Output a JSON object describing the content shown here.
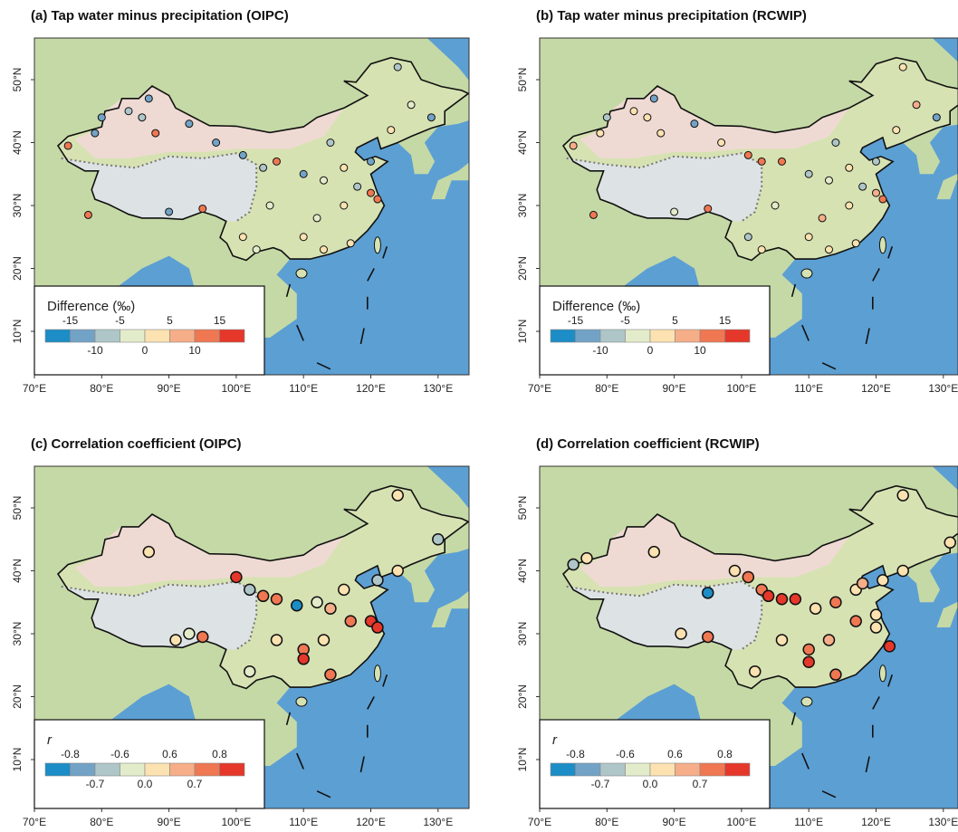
{
  "panels": [
    {
      "title": "(a) Tap water minus precipitation (OIPC)",
      "legend_title": "Difference (‰)",
      "legend_breaks": [
        -15,
        -10,
        -5,
        0,
        5,
        10,
        15
      ],
      "legend_colors": [
        "#1c8dc6",
        "#72a3c6",
        "#aec6c8",
        "#e3ecca",
        "#fbe2b0",
        "#f6ae88",
        "#ef7752",
        "#e5372a"
      ],
      "lon_ticks": [
        {
          "value": 70,
          "label": "70°E"
        },
        {
          "value": 80,
          "label": "80°E"
        },
        {
          "value": 90,
          "label": "90°E"
        },
        {
          "value": 100,
          "label": "100°E"
        },
        {
          "value": 110,
          "label": "110°E"
        },
        {
          "value": 120,
          "label": "120°E"
        },
        {
          "value": 130,
          "label": "130°E"
        }
      ],
      "lat_ticks": [
        {
          "value": 10,
          "label": "10°N"
        },
        {
          "value": 20,
          "label": "20°N"
        },
        {
          "value": 30,
          "label": "30°N"
        },
        {
          "value": 40,
          "label": "40°N"
        },
        {
          "value": 50,
          "label": "50°N"
        }
      ],
      "stations": [
        [
          75,
          39.5,
          12
        ],
        [
          79,
          41.5,
          -12
        ],
        [
          80,
          44,
          -11
        ],
        [
          84,
          45,
          -8
        ],
        [
          87,
          47,
          -13
        ],
        [
          86,
          44,
          -10
        ],
        [
          93,
          43,
          -12
        ],
        [
          88,
          41.5,
          10
        ],
        [
          97,
          40,
          -11
        ],
        [
          101,
          38,
          -14
        ],
        [
          104,
          36,
          -9
        ],
        [
          106,
          37,
          12
        ],
        [
          110,
          35,
          -12
        ],
        [
          113,
          34,
          -3
        ],
        [
          116,
          36,
          2
        ],
        [
          118,
          33,
          -8
        ],
        [
          120,
          32,
          13
        ],
        [
          121,
          31,
          12
        ],
        [
          116,
          30,
          3
        ],
        [
          112,
          28,
          -1
        ],
        [
          110,
          25,
          4
        ],
        [
          105,
          30,
          -2
        ],
        [
          101,
          25,
          0
        ],
        [
          103,
          23,
          -1
        ],
        [
          95,
          29.5,
          13
        ],
        [
          90,
          29,
          -11
        ],
        [
          78,
          28.5,
          14
        ],
        [
          114,
          40,
          -9
        ],
        [
          123,
          42,
          1
        ],
        [
          126,
          46,
          -3
        ],
        [
          129,
          44,
          -12
        ],
        [
          124,
          52,
          -9
        ],
        [
          120,
          37,
          -12
        ],
        [
          113,
          23,
          2
        ],
        [
          117,
          24,
          1
        ]
      ]
    },
    {
      "title": "(b) Tap water minus precipitation (RCWIP)",
      "legend_title": "Difference (‰)",
      "legend_breaks": [
        -15,
        -10,
        -5,
        0,
        5,
        10,
        15
      ],
      "legend_colors": [
        "#1c8dc6",
        "#72a3c6",
        "#aec6c8",
        "#e3ecca",
        "#fbe2b0",
        "#f6ae88",
        "#ef7752",
        "#e5372a"
      ],
      "lon_ticks": [
        {
          "value": 70,
          "label": "70°E"
        },
        {
          "value": 80,
          "label": "80°E"
        },
        {
          "value": 90,
          "label": "90°E"
        },
        {
          "value": 100,
          "label": "100°E"
        },
        {
          "value": 110,
          "label": "110°E"
        },
        {
          "value": 120,
          "label": "120°E"
        },
        {
          "value": 130,
          "label": "130°E"
        }
      ],
      "lat_ticks": [
        {
          "value": 10,
          "label": "10°N"
        },
        {
          "value": 20,
          "label": "20°N"
        },
        {
          "value": 30,
          "label": "30°N"
        },
        {
          "value": 40,
          "label": "40°N"
        },
        {
          "value": 50,
          "label": "50°N"
        }
      ],
      "stations": [
        [
          75,
          39.5,
          6
        ],
        [
          79,
          41.5,
          2
        ],
        [
          80,
          44,
          -9
        ],
        [
          84,
          45,
          1
        ],
        [
          87,
          47,
          -11
        ],
        [
          86,
          44,
          2
        ],
        [
          93,
          43,
          -12
        ],
        [
          88,
          41.5,
          3
        ],
        [
          97,
          40,
          1
        ],
        [
          101,
          38,
          13
        ],
        [
          103,
          37,
          14
        ],
        [
          106,
          37,
          13
        ],
        [
          110,
          35,
          -10
        ],
        [
          113,
          34,
          -2
        ],
        [
          116,
          36,
          3
        ],
        [
          118,
          33,
          -6
        ],
        [
          120,
          32,
          9
        ],
        [
          121,
          31,
          14
        ],
        [
          116,
          30,
          4
        ],
        [
          112,
          28,
          8
        ],
        [
          110,
          25,
          3
        ],
        [
          105,
          30,
          -3
        ],
        [
          101,
          25,
          -7
        ],
        [
          103,
          23,
          1
        ],
        [
          95,
          29.5,
          13
        ],
        [
          90,
          29,
          -4
        ],
        [
          78,
          28.5,
          14
        ],
        [
          114,
          40,
          -9
        ],
        [
          123,
          42,
          4
        ],
        [
          126,
          46,
          8
        ],
        [
          129,
          44,
          -12
        ],
        [
          124,
          52,
          2
        ],
        [
          120,
          37,
          -8
        ],
        [
          113,
          23,
          3
        ],
        [
          117,
          24,
          2
        ]
      ]
    },
    {
      "title": "(c) Correlation coefficient (OIPC)",
      "legend_title": "r",
      "legend_breaks": [
        -0.8,
        -0.7,
        -0.6,
        {
          "value": 0,
          "label": "0.0"
        },
        0.6,
        0.7,
        0.8
      ],
      "legend_colors": [
        "#1c8dc6",
        "#72a3c6",
        "#aec6c8",
        "#e3ecca",
        "#fbe2b0",
        "#f6ae88",
        "#ef7752",
        "#e5372a"
      ],
      "lon_ticks": [
        {
          "value": 70,
          "label": "70°E"
        },
        {
          "value": 80,
          "label": "80°E"
        },
        {
          "value": 90,
          "label": "90°E"
        },
        {
          "value": 100,
          "label": "100°E"
        },
        {
          "value": 110,
          "label": "110°E"
        },
        {
          "value": 120,
          "label": "120°E"
        },
        {
          "value": 130,
          "label": "130°E"
        }
      ],
      "lat_ticks": [
        {
          "value": 10,
          "label": "10°N"
        },
        {
          "value": 20,
          "label": "20°N"
        },
        {
          "value": 30,
          "label": "30°N"
        },
        {
          "value": 40,
          "label": "40°N"
        },
        {
          "value": 50,
          "label": "50°N"
        }
      ],
      "stations": [
        [
          87,
          43,
          0.3
        ],
        [
          100,
          39,
          0.85
        ],
        [
          102,
          37,
          -0.65
        ],
        [
          104,
          36,
          0.75
        ],
        [
          106,
          35.5,
          0.75
        ],
        [
          109,
          34.5,
          -0.9
        ],
        [
          112,
          35,
          -0.6
        ],
        [
          114,
          34,
          0.65
        ],
        [
          116,
          37,
          0.5
        ],
        [
          121,
          38.5,
          -0.65
        ],
        [
          117,
          32,
          0.75
        ],
        [
          120,
          32,
          0.85
        ],
        [
          121,
          31,
          0.85
        ],
        [
          113,
          29,
          0.3
        ],
        [
          110,
          27.5,
          0.75
        ],
        [
          110,
          26,
          0.85
        ],
        [
          114,
          23.5,
          0.7
        ],
        [
          106,
          29,
          0.5
        ],
        [
          102,
          24,
          -0.6
        ],
        [
          91,
          29,
          0.3
        ],
        [
          95,
          29.5,
          0.7
        ],
        [
          93,
          30,
          -0.6
        ],
        [
          124,
          52,
          0.3
        ],
        [
          130,
          45,
          -0.65
        ],
        [
          124,
          40,
          0.4
        ]
      ]
    },
    {
      "title": "(d) Correlation coefficient (RCWIP)",
      "legend_title": "r",
      "legend_breaks": [
        -0.8,
        -0.7,
        -0.6,
        {
          "value": 0,
          "label": "0.0"
        },
        0.6,
        0.7,
        0.8
      ],
      "legend_colors": [
        "#1c8dc6",
        "#72a3c6",
        "#aec6c8",
        "#e3ecca",
        "#fbe2b0",
        "#f6ae88",
        "#ef7752",
        "#e5372a"
      ],
      "lon_ticks": [
        {
          "value": 70,
          "label": "70°E"
        },
        {
          "value": 80,
          "label": "80°E"
        },
        {
          "value": 90,
          "label": "90°E"
        },
        {
          "value": 100,
          "label": "100°E"
        },
        {
          "value": 110,
          "label": "110°E"
        },
        {
          "value": 120,
          "label": "120°E"
        },
        {
          "value": 130,
          "label": "130°E"
        }
      ],
      "lat_ticks": [
        {
          "value": 10,
          "label": "10°N"
        },
        {
          "value": 20,
          "label": "20°N"
        },
        {
          "value": 30,
          "label": "30°N"
        },
        {
          "value": 40,
          "label": "40°N"
        },
        {
          "value": 50,
          "label": "50°N"
        }
      ],
      "stations": [
        [
          75,
          41,
          -0.65
        ],
        [
          77,
          42,
          0.3
        ],
        [
          87,
          43,
          0.3
        ],
        [
          95,
          36.5,
          -0.9
        ],
        [
          99,
          40,
          0.5
        ],
        [
          101,
          39,
          0.75
        ],
        [
          103,
          37,
          0.7
        ],
        [
          104,
          36,
          0.8
        ],
        [
          106,
          35.5,
          0.85
        ],
        [
          108,
          35.5,
          0.9
        ],
        [
          111,
          34,
          0.3
        ],
        [
          114,
          35,
          0.7
        ],
        [
          117,
          37,
          0.5
        ],
        [
          118,
          38,
          0.65
        ],
        [
          121,
          38.5,
          0.5
        ],
        [
          120,
          33,
          0.4
        ],
        [
          117,
          32,
          0.75
        ],
        [
          113,
          29,
          0.65
        ],
        [
          110,
          27.5,
          0.75
        ],
        [
          110,
          25.5,
          0.85
        ],
        [
          114,
          23.5,
          0.7
        ],
        [
          106,
          29,
          0.3
        ],
        [
          102,
          24,
          0.3
        ],
        [
          91,
          30,
          0.3
        ],
        [
          95,
          29.5,
          0.7
        ],
        [
          124,
          52,
          0.3
        ],
        [
          131,
          44.5,
          0.3
        ],
        [
          124,
          40,
          0.4
        ],
        [
          120,
          31,
          0.5
        ],
        [
          122,
          28,
          0.85
        ]
      ]
    }
  ]
}
